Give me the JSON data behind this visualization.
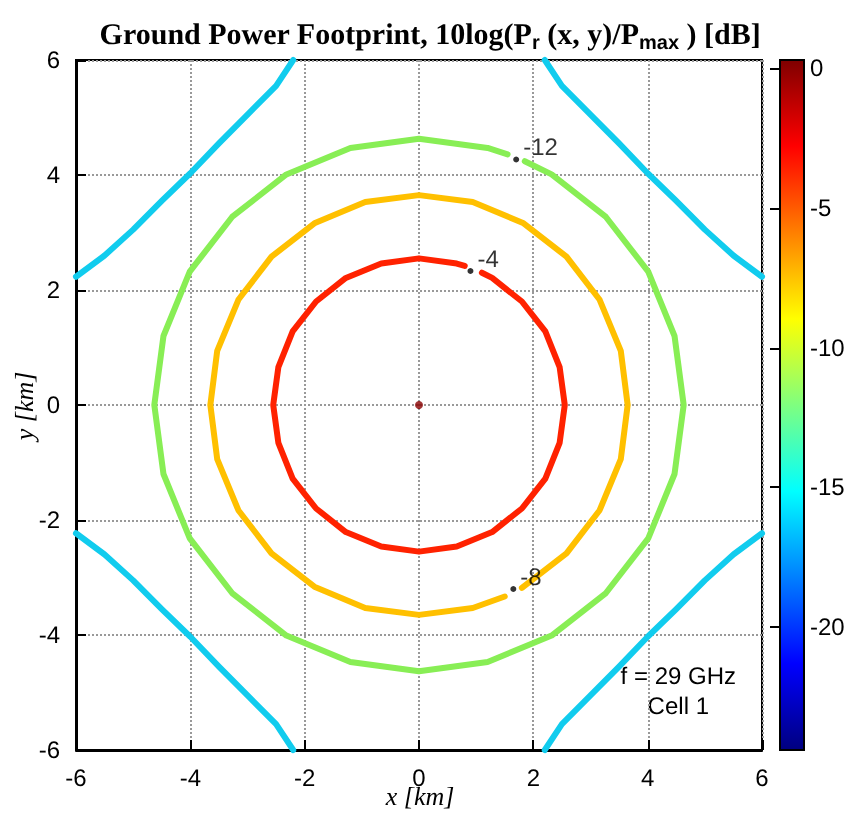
{
  "chart_data": {
    "type": "line",
    "title": "Ground Power Footprint, 10log(P$_{r}$ (x, y)/P$_{max}$ ) [dB]",
    "xlabel": "x [km]",
    "ylabel": "y [km]",
    "xlim": [
      -6,
      6
    ],
    "ylim": [
      -6,
      6
    ],
    "xticks": [
      -6,
      -4,
      -2,
      0,
      2,
      4,
      6
    ],
    "yticks": [
      -6,
      -4,
      -2,
      0,
      2,
      4,
      6
    ],
    "grid": true,
    "line_style": "solid",
    "clim": [
      -24.4,
      0.3
    ],
    "cticks": [
      0,
      -5,
      -10,
      -15,
      -20
    ],
    "series": [
      {
        "color": "#ff2200",
        "x": [
          1.1,
          1.28,
          1.8,
          2.21,
          2.46,
          2.55,
          2.46,
          2.21,
          1.8,
          1.28,
          0.66,
          0,
          -0.66,
          -1.28,
          -1.8,
          -2.21,
          -2.46,
          -2.55,
          -2.46,
          -2.21,
          -1.8,
          -1.28,
          -0.66,
          0,
          0.66,
          0.8
        ],
        "values": [
          2.3,
          2.21,
          1.8,
          1.28,
          0.66,
          0,
          -0.66,
          -1.28,
          -1.8,
          -2.21,
          -2.46,
          -2.55,
          -2.46,
          -2.21,
          -1.8,
          -1.28,
          -0.66,
          0,
          0.66,
          1.28,
          1.8,
          2.21,
          2.46,
          2.55,
          2.46,
          2.42
        ]
      },
      {
        "color": "#ffc000",
        "x": [
          1.8,
          2.58,
          3.16,
          3.53,
          3.65,
          3.53,
          3.16,
          2.58,
          1.83,
          0.94,
          0,
          -0.94,
          -1.83,
          -2.58,
          -3.16,
          -3.53,
          -3.65,
          -3.53,
          -3.16,
          -2.58,
          -1.83,
          -0.94,
          0,
          0.94,
          1.5
        ],
        "values": [
          -3.18,
          -2.58,
          -1.83,
          -0.94,
          0,
          0.94,
          1.83,
          2.58,
          3.16,
          3.53,
          3.65,
          3.53,
          3.16,
          2.58,
          1.83,
          0.94,
          0,
          -0.94,
          -1.83,
          -2.58,
          -3.16,
          -3.53,
          -3.65,
          -3.53,
          -3.33
        ]
      },
      {
        "color": "#88ee55",
        "x": [
          1.55,
          1.2,
          0,
          -1.2,
          -2.32,
          -3.27,
          -4.01,
          -4.47,
          -4.63,
          -4.47,
          -4.01,
          -3.27,
          -2.32,
          -1.2,
          0,
          1.2,
          2.32,
          3.27,
          4.01,
          4.47,
          4.63,
          4.47,
          4.01,
          3.27,
          2.32,
          1.85
        ],
        "values": [
          4.36,
          4.47,
          4.63,
          4.47,
          4.01,
          3.27,
          2.32,
          1.2,
          0,
          -1.2,
          -2.32,
          -3.27,
          -4.01,
          -4.47,
          -4.63,
          -4.47,
          -4.01,
          -3.27,
          -2.32,
          -1.2,
          0,
          1.2,
          2.32,
          3.27,
          4.01,
          4.24
        ]
      },
      {
        "color": "#11ccee",
        "x": [
          -6,
          -5.5,
          -5,
          -4.5,
          -4,
          -3.5,
          -3,
          -2.5,
          -2.2
        ],
        "values": [
          2.23,
          2.6,
          3.05,
          3.55,
          4.03,
          4.55,
          5.05,
          5.55,
          6
        ]
      },
      {
        "color": "#11ccee",
        "x": [
          6,
          5.5,
          5,
          4.5,
          4,
          3.5,
          3,
          2.5,
          2.2
        ],
        "values": [
          2.23,
          2.6,
          3.05,
          3.55,
          4.03,
          4.55,
          5.05,
          5.55,
          6
        ]
      },
      {
        "color": "#11ccee",
        "x": [
          -6,
          -5.5,
          -5,
          -4.5,
          -4,
          -3.5,
          -3,
          -2.5,
          -2.2
        ],
        "values": [
          -2.23,
          -2.6,
          -3.05,
          -3.55,
          -4.03,
          -4.55,
          -5.05,
          -5.55,
          -6
        ]
      },
      {
        "color": "#11ccee",
        "x": [
          6,
          5.5,
          5,
          4.5,
          4,
          3.5,
          3,
          2.5,
          2.2
        ],
        "values": [
          -2.23,
          -2.6,
          -3.05,
          -3.55,
          -4.03,
          -4.55,
          -5.05,
          -5.55,
          -6
        ]
      },
      {
        "type": "scatter",
        "marker": "circle",
        "color": "#880000",
        "x": [
          0
        ],
        "values": [
          0
        ]
      }
    ],
    "annotations": [
      {
        "text": "-4",
        "x": 0.9,
        "y": 2.33
      },
      {
        "text": "-12",
        "x": 1.7,
        "y": 4.27
      },
      {
        "text": "-8",
        "x": 1.65,
        "y": -3.2
      },
      "f = 29 GHz",
      "Cell 1"
    ]
  }
}
